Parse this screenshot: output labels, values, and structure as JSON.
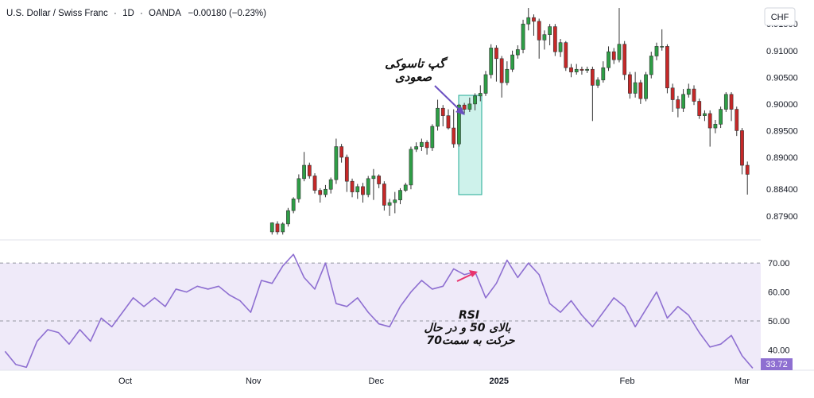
{
  "header": {
    "symbol": "U.S. Dollar / Swiss Franc",
    "interval": "1D",
    "source": "OANDA",
    "change": "−0.00180 (−0.23%)",
    "sep": "·"
  },
  "currency_label": "CHF",
  "colors": {
    "up": "#22ab94",
    "up_body": "#2e9e46",
    "down": "#c62828",
    "wick": "#333333",
    "rsi_line": "#8e6fd1",
    "rsi_band": "#efeaf9",
    "rsi_current_bg": "#8e6fd1",
    "gap_box_fill": "#b9ece3",
    "gap_box_stroke": "#22ab94",
    "arrow_purple": "#6a4fc1",
    "arrow_pink": "#e8336d"
  },
  "annotations": {
    "gap_line1": "گپ تاسوکی",
    "gap_line2": "صعودی",
    "rsi_line1": "RSI",
    "rsi_line2": "بالای 50 و در حال",
    "rsi_line3": "حرکت به سمت70"
  },
  "chart_data": [
    {
      "type": "candlestick",
      "title": "U.S. Dollar / Swiss Franc · 1D · OANDA",
      "ylabel": "CHF",
      "ylim": [
        0.8745,
        0.9195
      ],
      "yticks": [
        "0.91500",
        "0.91000",
        "0.90500",
        "0.90000",
        "0.89500",
        "0.89000",
        "0.88400",
        "0.87900"
      ],
      "ytick_values": [
        0.915,
        0.91,
        0.905,
        0.9,
        0.895,
        0.89,
        0.884,
        0.879
      ],
      "xticks": [
        "Oct",
        "Nov",
        "Dec",
        "2025",
        "Feb",
        "Mar"
      ],
      "xtick_index": [
        22.5,
        46.5,
        69.5,
        92.5,
        116.5,
        138
      ],
      "n_slots": 142,
      "first_candle_index": 50,
      "candles": [
        [
          0.876,
          0.8777,
          0.8755,
          0.8778
        ],
        [
          0.8775,
          0.876,
          0.8755,
          0.878
        ],
        [
          0.876,
          0.8775,
          0.8755,
          0.8778
        ],
        [
          0.8775,
          0.88,
          0.877,
          0.8805
        ],
        [
          0.88,
          0.8822,
          0.8795,
          0.8825
        ],
        [
          0.8822,
          0.886,
          0.8815,
          0.8868
        ],
        [
          0.886,
          0.8885,
          0.8855,
          0.891
        ],
        [
          0.8885,
          0.8865,
          0.886,
          0.889
        ],
        [
          0.8865,
          0.8838,
          0.8832,
          0.887
        ],
        [
          0.8838,
          0.883,
          0.8815,
          0.8842
        ],
        [
          0.883,
          0.884,
          0.8825,
          0.8848
        ],
        [
          0.884,
          0.8858,
          0.8832,
          0.8862
        ],
        [
          0.8858,
          0.892,
          0.885,
          0.8935
        ],
        [
          0.892,
          0.89,
          0.889,
          0.8925
        ],
        [
          0.89,
          0.8855,
          0.8835,
          0.8905
        ],
        [
          0.8855,
          0.8835,
          0.8825,
          0.886
        ],
        [
          0.8835,
          0.8845,
          0.8822,
          0.885
        ],
        [
          0.8845,
          0.883,
          0.8815,
          0.8852
        ],
        [
          0.883,
          0.886,
          0.8825,
          0.8865
        ],
        [
          0.886,
          0.8865,
          0.882,
          0.8878
        ],
        [
          0.8865,
          0.885,
          0.8842,
          0.8868
        ],
        [
          0.885,
          0.881,
          0.88,
          0.8855
        ],
        [
          0.881,
          0.8815,
          0.879,
          0.8822
        ],
        [
          0.8815,
          0.882,
          0.8795,
          0.8835
        ],
        [
          0.882,
          0.8838,
          0.8812,
          0.8842
        ],
        [
          0.8838,
          0.8848,
          0.8835,
          0.8852
        ],
        [
          0.8848,
          0.8915,
          0.884,
          0.892
        ],
        [
          0.8915,
          0.892,
          0.891,
          0.8928
        ],
        [
          0.892,
          0.8928,
          0.8912,
          0.8935
        ],
        [
          0.8928,
          0.8918,
          0.8905,
          0.8932
        ],
        [
          0.8918,
          0.8958,
          0.8912,
          0.8962
        ],
        [
          0.8958,
          0.8992,
          0.895,
          0.9008
        ],
        [
          0.8992,
          0.8978,
          0.8958,
          0.8998
        ],
        [
          0.8978,
          0.8955,
          0.8952,
          0.899
        ],
        [
          0.8955,
          0.8925,
          0.8918,
          0.899
        ],
        [
          0.8925,
          0.8998,
          0.892,
          0.9
        ],
        [
          0.8998,
          0.899,
          0.8982,
          0.9002
        ],
        [
          0.899,
          0.9,
          0.8985,
          0.9012
        ],
        [
          0.9,
          0.9015,
          0.8988,
          0.902
        ],
        [
          0.9015,
          0.902,
          0.9005,
          0.9035
        ],
        [
          0.902,
          0.9055,
          0.9015,
          0.9062
        ],
        [
          0.9055,
          0.9105,
          0.9048,
          0.9112
        ],
        [
          0.9105,
          0.9085,
          0.9042,
          0.911
        ],
        [
          0.9085,
          0.904,
          0.9012,
          0.909
        ],
        [
          0.904,
          0.9065,
          0.9035,
          0.908
        ],
        [
          0.9065,
          0.9092,
          0.906,
          0.91
        ],
        [
          0.9092,
          0.9102,
          0.9085,
          0.911
        ],
        [
          0.9102,
          0.915,
          0.9095,
          0.9158
        ],
        [
          0.915,
          0.9162,
          0.9138,
          0.918
        ],
        [
          0.9162,
          0.9155,
          0.9128,
          0.9168
        ],
        [
          0.9155,
          0.912,
          0.9085,
          0.916
        ],
        [
          0.912,
          0.913,
          0.9102,
          0.9138
        ],
        [
          0.913,
          0.9145,
          0.911,
          0.915
        ],
        [
          0.9145,
          0.9098,
          0.909,
          0.915
        ],
        [
          0.9098,
          0.9115,
          0.9088,
          0.9122
        ],
        [
          0.9115,
          0.9068,
          0.9062,
          0.9118
        ],
        [
          0.9068,
          0.906,
          0.905,
          0.9075
        ],
        [
          0.906,
          0.9065,
          0.9055,
          0.9075
        ],
        [
          0.9065,
          0.9063,
          0.9055,
          0.907
        ],
        [
          0.9063,
          0.9065,
          0.9058,
          0.907
        ],
        [
          0.9065,
          0.9035,
          0.8968,
          0.907
        ],
        [
          0.9035,
          0.9045,
          0.903,
          0.905
        ],
        [
          0.9045,
          0.9068,
          0.904,
          0.908
        ],
        [
          0.9068,
          0.9098,
          0.9062,
          0.9108
        ],
        [
          0.9098,
          0.9083,
          0.9075,
          0.9105
        ],
        [
          0.9083,
          0.9112,
          0.9078,
          0.918
        ],
        [
          0.9112,
          0.9055,
          0.9045,
          0.9118
        ],
        [
          0.9055,
          0.902,
          0.901,
          0.906
        ],
        [
          0.902,
          0.904,
          0.9012,
          0.906
        ],
        [
          0.904,
          0.901,
          0.9,
          0.9045
        ],
        [
          0.901,
          0.9055,
          0.9005,
          0.906
        ],
        [
          0.9055,
          0.909,
          0.9048,
          0.9098
        ],
        [
          0.909,
          0.9108,
          0.9082,
          0.9115
        ],
        [
          0.9108,
          0.9108,
          0.91,
          0.914
        ],
        [
          0.9108,
          0.903,
          0.902,
          0.9112
        ],
        [
          0.903,
          0.9008,
          0.8985,
          0.9038
        ],
        [
          0.9008,
          0.8992,
          0.8975,
          0.9015
        ],
        [
          0.8992,
          0.9018,
          0.8985,
          0.9028
        ],
        [
          0.9018,
          0.9028,
          0.9012,
          0.9038
        ],
        [
          0.9028,
          0.9005,
          0.8998,
          0.9035
        ],
        [
          0.9005,
          0.8978,
          0.8972,
          0.901
        ],
        [
          0.8978,
          0.8982,
          0.8968,
          0.8988
        ],
        [
          0.8982,
          0.8955,
          0.892,
          0.8988
        ],
        [
          0.8955,
          0.8962,
          0.8945,
          0.897
        ],
        [
          0.8962,
          0.899,
          0.8955,
          0.8995
        ],
        [
          0.899,
          0.9018,
          0.8985,
          0.9022
        ],
        [
          0.9018,
          0.899,
          0.8968,
          0.9022
        ],
        [
          0.899,
          0.895,
          0.894,
          0.8995
        ],
        [
          0.895,
          0.8885,
          0.8868,
          0.8955
        ],
        [
          0.8885,
          0.8868,
          0.883,
          0.8892
        ]
      ]
    },
    {
      "type": "line",
      "title": "RSI",
      "ylim": [
        33.0,
        78.0
      ],
      "yticks": [
        "70.00",
        "60.00",
        "50.00",
        "40.00"
      ],
      "ytick_values": [
        70,
        60,
        50,
        40
      ],
      "reference_lines": [
        70,
        50
      ],
      "current_value": "33.72",
      "x_index": [
        0,
        2,
        4,
        6,
        8,
        10,
        12,
        14,
        16,
        18,
        20,
        22,
        24,
        26,
        28,
        30,
        32,
        34,
        36,
        38,
        40,
        42,
        44,
        46,
        48,
        50,
        52,
        54,
        56,
        58,
        60,
        62,
        64,
        66,
        68,
        70,
        72,
        74,
        76,
        78,
        80,
        82,
        84,
        86,
        88,
        90,
        92,
        94,
        96,
        98,
        100,
        102,
        104,
        106,
        108,
        110,
        112,
        114,
        116,
        118,
        120,
        122,
        124,
        126,
        128,
        130,
        132,
        134,
        136,
        138,
        140
      ],
      "values": [
        39.5,
        35,
        34,
        43,
        47,
        46,
        42,
        47,
        43,
        51,
        48,
        53,
        58,
        55,
        58,
        55,
        61,
        60,
        62,
        61,
        62,
        59,
        57,
        53,
        64,
        63,
        69,
        73,
        65,
        61,
        70,
        56,
        55,
        58,
        53,
        49,
        48,
        55,
        60,
        64,
        61,
        62,
        68,
        66,
        67,
        58,
        63,
        71,
        65,
        70,
        66,
        56,
        53,
        57,
        52,
        48,
        53,
        58,
        55,
        48,
        54,
        60,
        51,
        55,
        52,
        46,
        41,
        42,
        45,
        38,
        33.7
      ]
    }
  ]
}
